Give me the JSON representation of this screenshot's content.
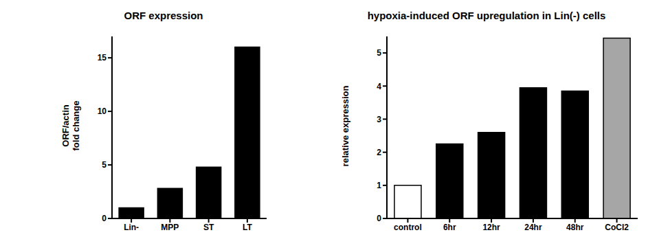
{
  "chart_data": [
    {
      "type": "bar",
      "title": "ORF expression",
      "y_label": "ORF/actin\nfold change",
      "categories": [
        "Lin-",
        "MPP",
        "ST",
        "LT"
      ],
      "values": [
        1,
        2.8,
        4.8,
        16
      ],
      "colors": [
        "#000000",
        "#000000",
        "#000000",
        "#000000"
      ],
      "ylim": [
        0,
        17
      ],
      "yticks": [
        0,
        5,
        10,
        15
      ],
      "grid": false
    },
    {
      "type": "bar",
      "title": "hypoxia-induced ORF upregulation in Lin(-) cells",
      "y_label": "relative expression",
      "categories": [
        "control",
        "6hr",
        "12hr",
        "24hr",
        "48hr",
        "CoCl2"
      ],
      "values": [
        1,
        2.25,
        2.6,
        3.95,
        3.85,
        5.45
      ],
      "colors": [
        "#ffffff",
        "#000000",
        "#000000",
        "#000000",
        "#000000",
        "#a6a6a6"
      ],
      "ylim": [
        0,
        5.5
      ],
      "yticks": [
        0,
        1,
        2,
        3,
        4,
        5
      ],
      "grid": false
    }
  ]
}
